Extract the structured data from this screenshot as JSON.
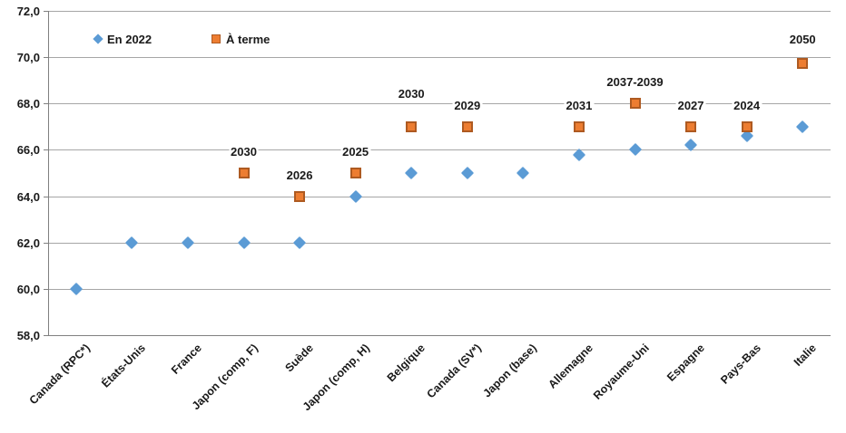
{
  "chart_data": {
    "type": "scatter",
    "title": "",
    "xlabel": "",
    "ylabel": "",
    "categories": [
      "Canada (RPC*)",
      "États-Unis",
      "France",
      "Japon (comp, F)",
      "Suède",
      "Japon (comp, H)",
      "Belgique",
      "Canada (SV*)",
      "Japon (base)",
      "Allemagne",
      "Royaume-Uni",
      "Espagne",
      "Pays-Bas",
      "Italie"
    ],
    "series": [
      {
        "name": "En 2022",
        "marker": "diamond",
        "color": "#5B9BD5",
        "values": [
          60,
          62,
          62,
          62,
          62,
          64,
          65,
          65,
          65,
          65.8,
          66,
          66.2,
          66.6,
          67
        ]
      },
      {
        "name": "À terme",
        "marker": "square",
        "color": "#ED7D31",
        "border_color": "#AE5A21",
        "values": [
          null,
          null,
          null,
          65,
          64,
          65,
          67,
          67,
          null,
          67,
          68,
          67,
          67,
          69.75
        ]
      }
    ],
    "point_labels": {
      "series": "À terme",
      "values": [
        "",
        "",
        "",
        "2030",
        "2026",
        "2025",
        "2030",
        "2029",
        "",
        "2031",
        "2037-2039",
        "2027",
        "2024",
        "2050"
      ]
    },
    "ylim": [
      58,
      72
    ],
    "ytick_step": 2,
    "ytick_labels": [
      "58,0",
      "60,0",
      "62,0",
      "64,0",
      "66,0",
      "68,0",
      "70,0",
      "72,0"
    ],
    "grid": true,
    "legend_position": "top-left-inside",
    "legend": [
      "En 2022",
      "À terme"
    ]
  },
  "colors": {
    "series_blue": "#5B9BD5",
    "series_orange": "#ED7D31",
    "series_orange_border": "#AE5A21",
    "gridline": "#A6A6A6",
    "axis_line": "#808080",
    "text": "#1A1A1A",
    "background": "#FFFFFF"
  }
}
